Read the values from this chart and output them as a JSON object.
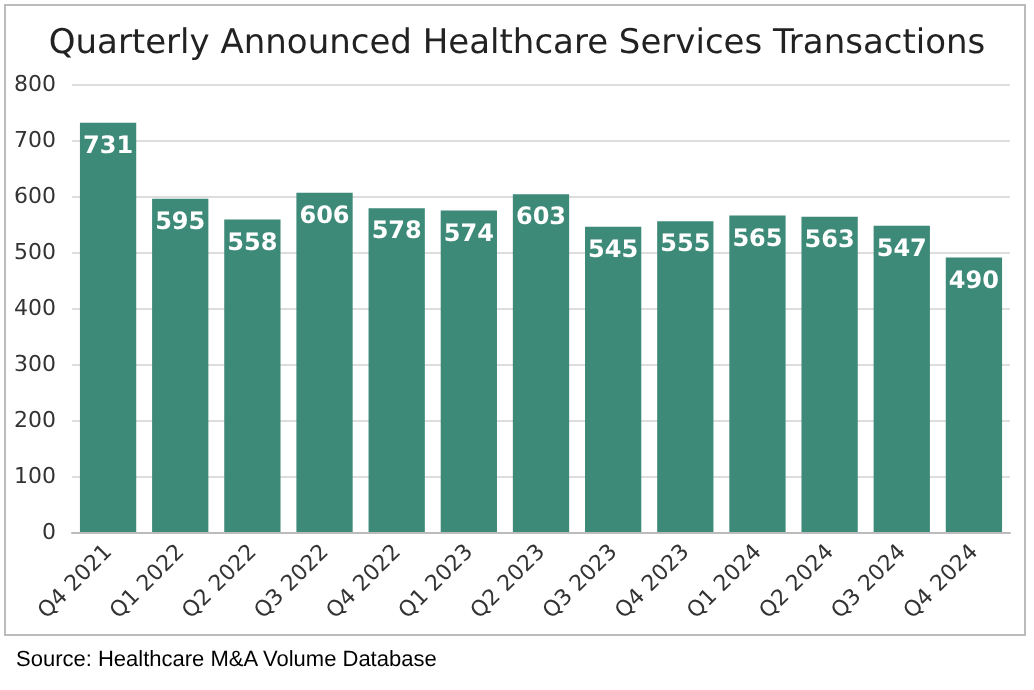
{
  "chart_data": {
    "type": "bar",
    "title": "Quarterly Announced Healthcare Services Transactions",
    "categories": [
      "Q4 2021",
      "Q1 2022",
      "Q2 2022",
      "Q3 2022",
      "Q4 2022",
      "Q1 2023",
      "Q2 2023",
      "Q3 2023",
      "Q4 2023",
      "Q1 2024",
      "Q2 2024",
      "Q3 2024",
      "Q4 2024"
    ],
    "values": [
      731,
      595,
      558,
      606,
      578,
      574,
      603,
      545,
      555,
      565,
      563,
      547,
      490
    ],
    "color": "#3d8a78",
    "ylim": [
      0,
      800
    ],
    "yticks": [
      0,
      100,
      200,
      300,
      400,
      500,
      600,
      700,
      800
    ],
    "grid": "y",
    "data_labels": true,
    "annotations": [
      "Source: Healthcare M&A Volume Database"
    ]
  }
}
